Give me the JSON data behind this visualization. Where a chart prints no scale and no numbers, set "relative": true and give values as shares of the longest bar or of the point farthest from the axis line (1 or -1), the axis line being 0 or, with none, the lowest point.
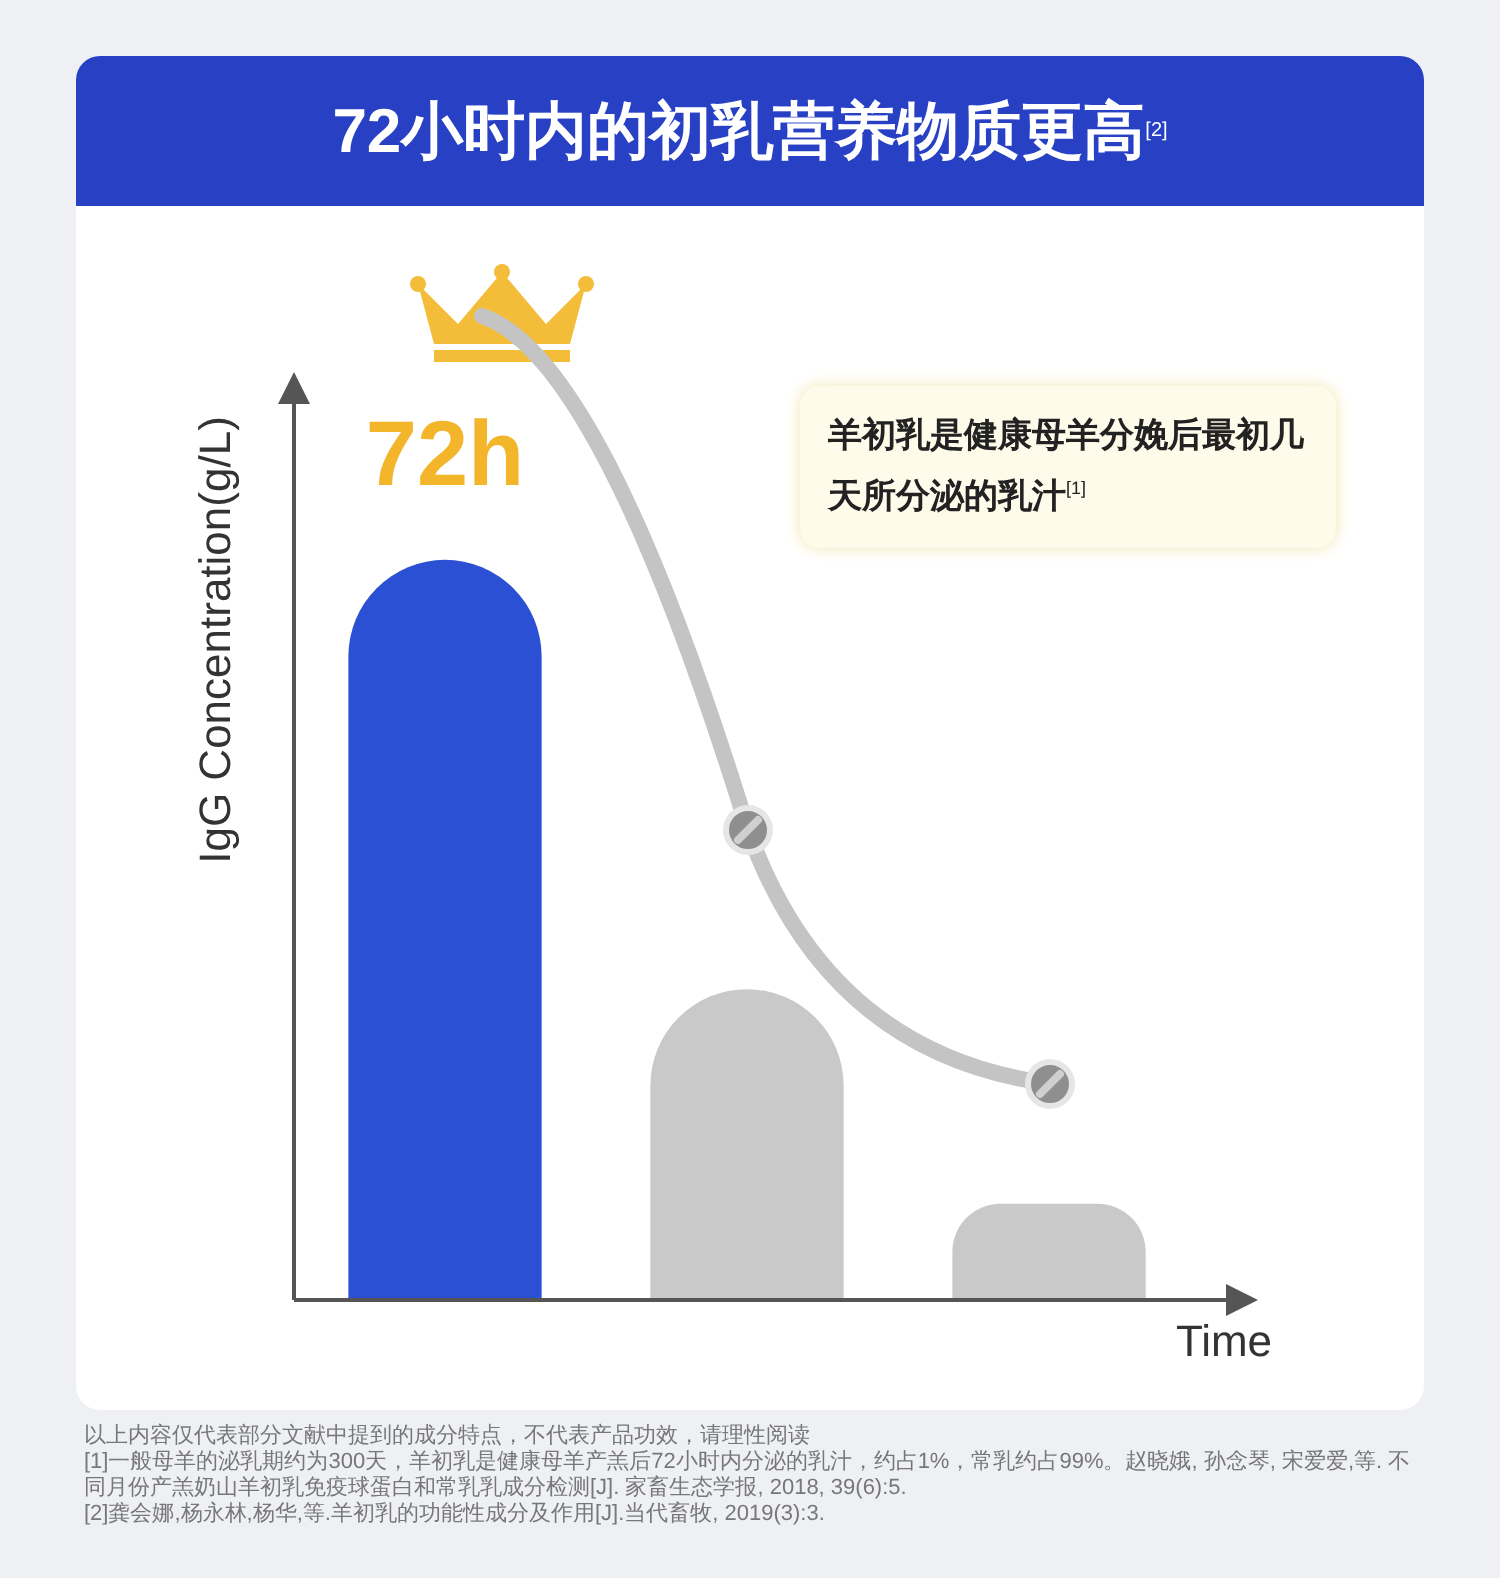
{
  "chart_data": {
    "type": "bar",
    "title": "72小时内的初乳营养物质更高$^{[2]}$",
    "xlabel": "Time",
    "ylabel": "IgG Concentration(g/L)",
    "categories": [
      null,
      null,
      null
    ],
    "relative": true,
    "legend": false,
    "tick_labels": false,
    "series": [
      {
        "colors": [
          "#2b50d4",
          "#c9c9c9",
          "#c9c9c9"
        ],
        "values": [
          1,
          0.42,
          0.13
        ]
      }
    ],
    "annotations": [
      "72h",
      "羊初乳是健康母羊分娩后最初几天所分泌的乳汁$^{[1]}$",
      "以上内容仅代表部分文献中提到的成分特点，不代表产品功效，请理性阅读",
      "[1]一般母羊的泌乳期约为300天，羊初乳是健康母羊产羔后72小时内分泌的乳汁，约占1%，常乳约占99%。赵晓娥, 孙念琴, 宋爱爱,等. 不同月份产羔奶山羊初乳免疫球蛋白和常乳乳成分检测[J]. 家畜生态学报, 2018, 39(6):5.",
      "[2]龚会娜,杨永林,杨华,等.羊初乳的功能性成分及作用[J].当代畜牧, 2019(3):3."
    ]
  }
}
